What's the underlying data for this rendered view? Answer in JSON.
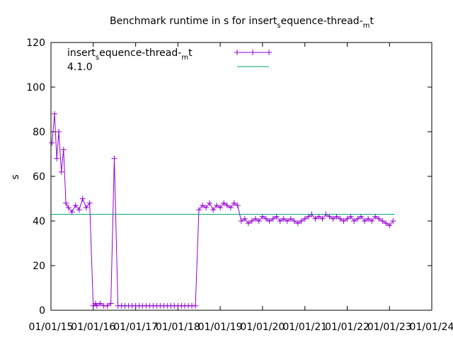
{
  "chart_data": {
    "type": "line",
    "title": {
      "a": "Benchmark runtime in s for insert",
      "b": "s",
      "c": "equence-thread-",
      "d": "m",
      "e": "t"
    },
    "ylabel": "s",
    "xlabel": "",
    "ylim": [
      0,
      120
    ],
    "xlim": [
      "2015-01-01",
      "2024-01-01"
    ],
    "yticks": [
      "0",
      "20",
      "40",
      "60",
      "80",
      "100",
      "120"
    ],
    "xticks": [
      "01/01/15",
      "01/01/16",
      "01/01/17",
      "01/01/18",
      "01/01/19",
      "01/01/20",
      "01/01/21",
      "01/01/22",
      "01/01/23",
      "01/01/24"
    ],
    "grid": false,
    "legend_position": "top-left",
    "series": [
      {
        "name": {
          "a": "insert",
          "b": "s",
          "c": "equence-thread-",
          "d": "m",
          "e": "t"
        },
        "color": "#9400d3",
        "marker": "plus",
        "x": [
          "2015-01-10",
          "2015-02-01",
          "2015-02-20",
          "2015-03-10",
          "2015-04-01",
          "2015-04-20",
          "2015-05-10",
          "2015-06-01",
          "2015-07-01",
          "2015-08-01",
          "2015-09-01",
          "2015-10-01",
          "2015-11-01",
          "2015-12-01",
          "2016-01-01",
          "2016-01-20",
          "2016-02-01",
          "2016-03-01",
          "2016-04-01",
          "2016-05-01",
          "2016-06-01",
          "2016-07-01",
          "2016-08-01",
          "2016-09-01",
          "2016-10-01",
          "2016-11-01",
          "2016-12-01",
          "2017-01-01",
          "2017-02-01",
          "2017-03-01",
          "2017-04-01",
          "2017-05-01",
          "2017-06-01",
          "2017-07-01",
          "2017-08-01",
          "2017-09-01",
          "2017-10-01",
          "2017-11-01",
          "2017-12-01",
          "2018-01-01",
          "2018-02-01",
          "2018-03-01",
          "2018-04-01",
          "2018-05-01",
          "2018-06-01",
          "2018-07-01",
          "2018-08-01",
          "2018-09-01",
          "2018-10-01",
          "2018-11-01",
          "2018-12-01",
          "2019-01-01",
          "2019-02-01",
          "2019-03-01",
          "2019-04-01",
          "2019-05-01",
          "2019-06-01",
          "2019-07-01",
          "2019-08-01",
          "2019-09-01",
          "2019-10-01",
          "2019-11-01",
          "2019-12-01",
          "2020-01-01",
          "2020-02-01",
          "2020-03-01",
          "2020-04-01",
          "2020-05-01",
          "2020-06-01",
          "2020-07-01",
          "2020-08-01",
          "2020-09-01",
          "2020-10-01",
          "2020-11-01",
          "2020-12-01",
          "2021-01-01",
          "2021-02-01",
          "2021-03-01",
          "2021-04-01",
          "2021-05-01",
          "2021-06-01",
          "2021-07-01",
          "2021-08-01",
          "2021-09-01",
          "2021-10-01",
          "2021-11-01",
          "2021-12-01",
          "2022-01-01",
          "2022-02-01",
          "2022-03-01",
          "2022-04-01",
          "2022-05-01",
          "2022-06-01",
          "2022-07-01",
          "2022-08-01",
          "2022-09-01",
          "2022-10-01",
          "2022-11-01",
          "2022-12-01",
          "2023-01-01",
          "2023-02-01"
        ],
        "y": [
          75,
          88,
          68,
          80,
          62,
          72,
          48,
          46,
          44,
          47,
          45,
          50,
          46,
          48,
          2,
          3,
          2,
          3,
          2,
          2,
          3,
          68,
          2,
          2,
          2,
          2,
          2,
          2,
          2,
          2,
          2,
          2,
          2,
          2,
          2,
          2,
          2,
          2,
          2,
          2,
          2,
          2,
          2,
          2,
          2,
          45,
          47,
          46,
          48,
          45,
          47,
          46,
          48,
          47,
          46,
          48,
          47,
          40,
          41,
          39,
          40,
          41,
          40,
          42,
          41,
          40,
          41,
          42,
          40,
          41,
          40,
          41,
          40,
          39,
          40,
          41,
          42,
          43,
          41,
          42,
          41,
          43,
          42,
          41,
          42,
          41,
          40,
          41,
          42,
          40,
          41,
          42,
          40,
          41,
          40,
          42,
          41,
          40,
          39,
          38,
          40
        ]
      },
      {
        "name": "4.1.0",
        "color": "#009e73",
        "marker": "none",
        "x": [
          "2015-01-01",
          "2023-02-15"
        ],
        "y": [
          43,
          43
        ]
      }
    ]
  }
}
